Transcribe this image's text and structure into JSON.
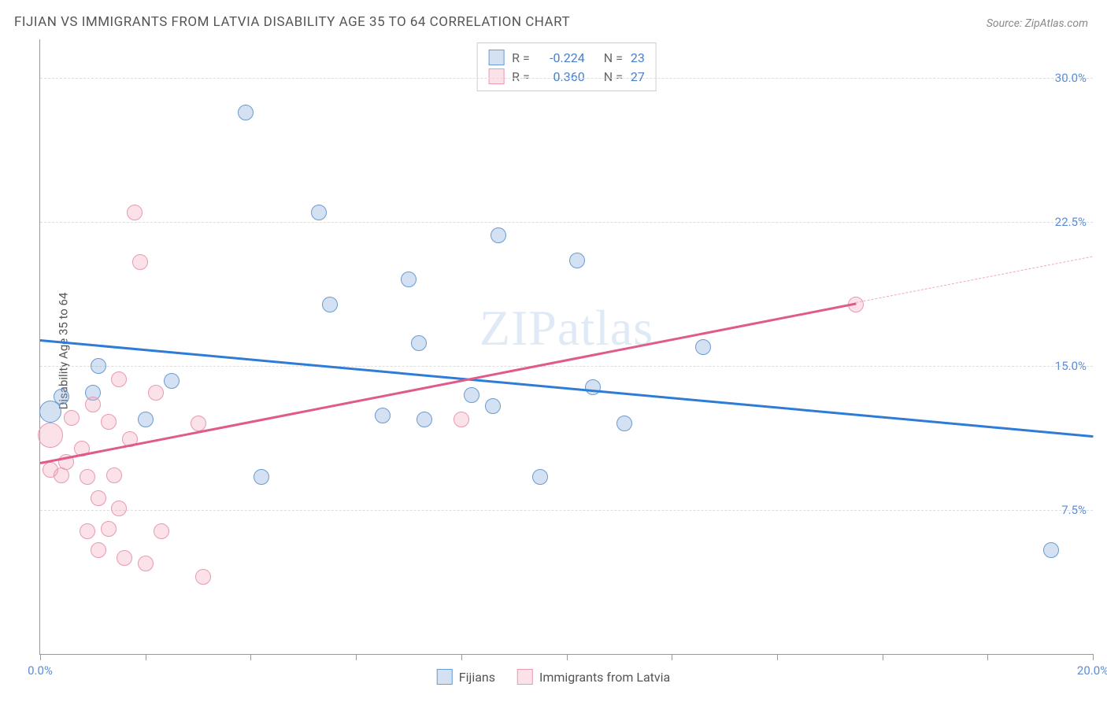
{
  "title": "FIJIAN VS IMMIGRANTS FROM LATVIA DISABILITY AGE 35 TO 64 CORRELATION CHART",
  "source_prefix": "Source: ",
  "source_name": "ZipAtlas.com",
  "watermark_a": "ZIP",
  "watermark_b": "atlas",
  "chart": {
    "type": "scatter",
    "ylabel": "Disability Age 35 to 64",
    "background_color": "#ffffff",
    "grid_color": "#dddddd",
    "axis_color": "#999999",
    "tick_label_color": "#5b8dd6",
    "xlim": [
      0,
      20
    ],
    "ylim": [
      0,
      32
    ],
    "xticks": [
      0,
      2,
      4,
      6,
      8,
      10,
      12,
      14,
      16,
      18,
      20
    ],
    "xtick_labeled": [
      0,
      20
    ],
    "xtick_labels": {
      "0": "0.0%",
      "20": "20.0%"
    },
    "yticks": [
      7.5,
      15.0,
      22.5,
      30.0
    ],
    "ytick_labels": [
      "7.5%",
      "15.0%",
      "22.5%",
      "30.0%"
    ],
    "series": [
      {
        "name": "Fijians",
        "color_fill": "rgba(130,170,220,0.35)",
        "color_stroke": "#6b9bd1",
        "trend_color": "#2e7cd6",
        "R": "-0.224",
        "N": "23",
        "trend": {
          "x1": 0,
          "y1": 16.4,
          "x2": 20,
          "y2": 11.4
        },
        "points": [
          {
            "x": 3.9,
            "y": 28.2,
            "r": 10
          },
          {
            "x": 5.3,
            "y": 23.0,
            "r": 10
          },
          {
            "x": 8.7,
            "y": 21.8,
            "r": 10
          },
          {
            "x": 10.2,
            "y": 20.5,
            "r": 10
          },
          {
            "x": 7.0,
            "y": 19.5,
            "r": 10
          },
          {
            "x": 5.5,
            "y": 18.2,
            "r": 10
          },
          {
            "x": 12.6,
            "y": 16.0,
            "r": 10
          },
          {
            "x": 7.2,
            "y": 16.2,
            "r": 10
          },
          {
            "x": 1.1,
            "y": 15.0,
            "r": 10
          },
          {
            "x": 2.5,
            "y": 14.2,
            "r": 10
          },
          {
            "x": 1.0,
            "y": 13.6,
            "r": 10
          },
          {
            "x": 0.4,
            "y": 13.4,
            "r": 10
          },
          {
            "x": 8.2,
            "y": 13.5,
            "r": 10
          },
          {
            "x": 10.5,
            "y": 13.9,
            "r": 10
          },
          {
            "x": 8.6,
            "y": 12.9,
            "r": 10
          },
          {
            "x": 7.3,
            "y": 12.2,
            "r": 10
          },
          {
            "x": 6.5,
            "y": 12.4,
            "r": 10
          },
          {
            "x": 11.1,
            "y": 12.0,
            "r": 10
          },
          {
            "x": 2.0,
            "y": 12.2,
            "r": 10
          },
          {
            "x": 0.2,
            "y": 12.6,
            "r": 14
          },
          {
            "x": 4.2,
            "y": 9.2,
            "r": 10
          },
          {
            "x": 9.5,
            "y": 9.2,
            "r": 10
          },
          {
            "x": 19.2,
            "y": 5.4,
            "r": 10
          }
        ]
      },
      {
        "name": "Immigrants from Latvia",
        "color_fill": "rgba(240,160,180,0.3)",
        "color_stroke": "#e89ab0",
        "trend_color": "#e05a8a",
        "R": "0.360",
        "N": "27",
        "trend": {
          "x1": 0,
          "y1": 10.0,
          "x2": 15.5,
          "y2": 18.3
        },
        "trend_extend": {
          "x1": 15.5,
          "y1": 18.3,
          "x2": 20,
          "y2": 20.7
        },
        "points": [
          {
            "x": 1.8,
            "y": 23.0,
            "r": 10
          },
          {
            "x": 1.9,
            "y": 20.4,
            "r": 10
          },
          {
            "x": 15.5,
            "y": 18.2,
            "r": 10
          },
          {
            "x": 1.5,
            "y": 14.3,
            "r": 10
          },
          {
            "x": 2.2,
            "y": 13.6,
            "r": 10
          },
          {
            "x": 1.0,
            "y": 13.0,
            "r": 10
          },
          {
            "x": 0.6,
            "y": 12.3,
            "r": 10
          },
          {
            "x": 1.3,
            "y": 12.1,
            "r": 10
          },
          {
            "x": 0.2,
            "y": 11.4,
            "r": 16
          },
          {
            "x": 3.0,
            "y": 12.0,
            "r": 10
          },
          {
            "x": 8.0,
            "y": 12.2,
            "r": 10
          },
          {
            "x": 1.7,
            "y": 11.2,
            "r": 10
          },
          {
            "x": 0.8,
            "y": 10.7,
            "r": 10
          },
          {
            "x": 0.5,
            "y": 10.0,
            "r": 10
          },
          {
            "x": 0.2,
            "y": 9.6,
            "r": 10
          },
          {
            "x": 0.4,
            "y": 9.3,
            "r": 10
          },
          {
            "x": 1.4,
            "y": 9.3,
            "r": 10
          },
          {
            "x": 0.9,
            "y": 9.2,
            "r": 10
          },
          {
            "x": 1.5,
            "y": 7.6,
            "r": 10
          },
          {
            "x": 0.9,
            "y": 6.4,
            "r": 10
          },
          {
            "x": 1.3,
            "y": 6.5,
            "r": 10
          },
          {
            "x": 2.3,
            "y": 6.4,
            "r": 10
          },
          {
            "x": 1.1,
            "y": 5.4,
            "r": 10
          },
          {
            "x": 1.6,
            "y": 5.0,
            "r": 10
          },
          {
            "x": 3.1,
            "y": 4.0,
            "r": 10
          },
          {
            "x": 2.0,
            "y": 4.7,
            "r": 10
          },
          {
            "x": 1.1,
            "y": 8.1,
            "r": 10
          }
        ]
      }
    ],
    "legend_top": {
      "r_label": "R =",
      "n_label": "N ="
    },
    "legend_bottom": [
      "Fijians",
      "Immigrants from Latvia"
    ]
  }
}
